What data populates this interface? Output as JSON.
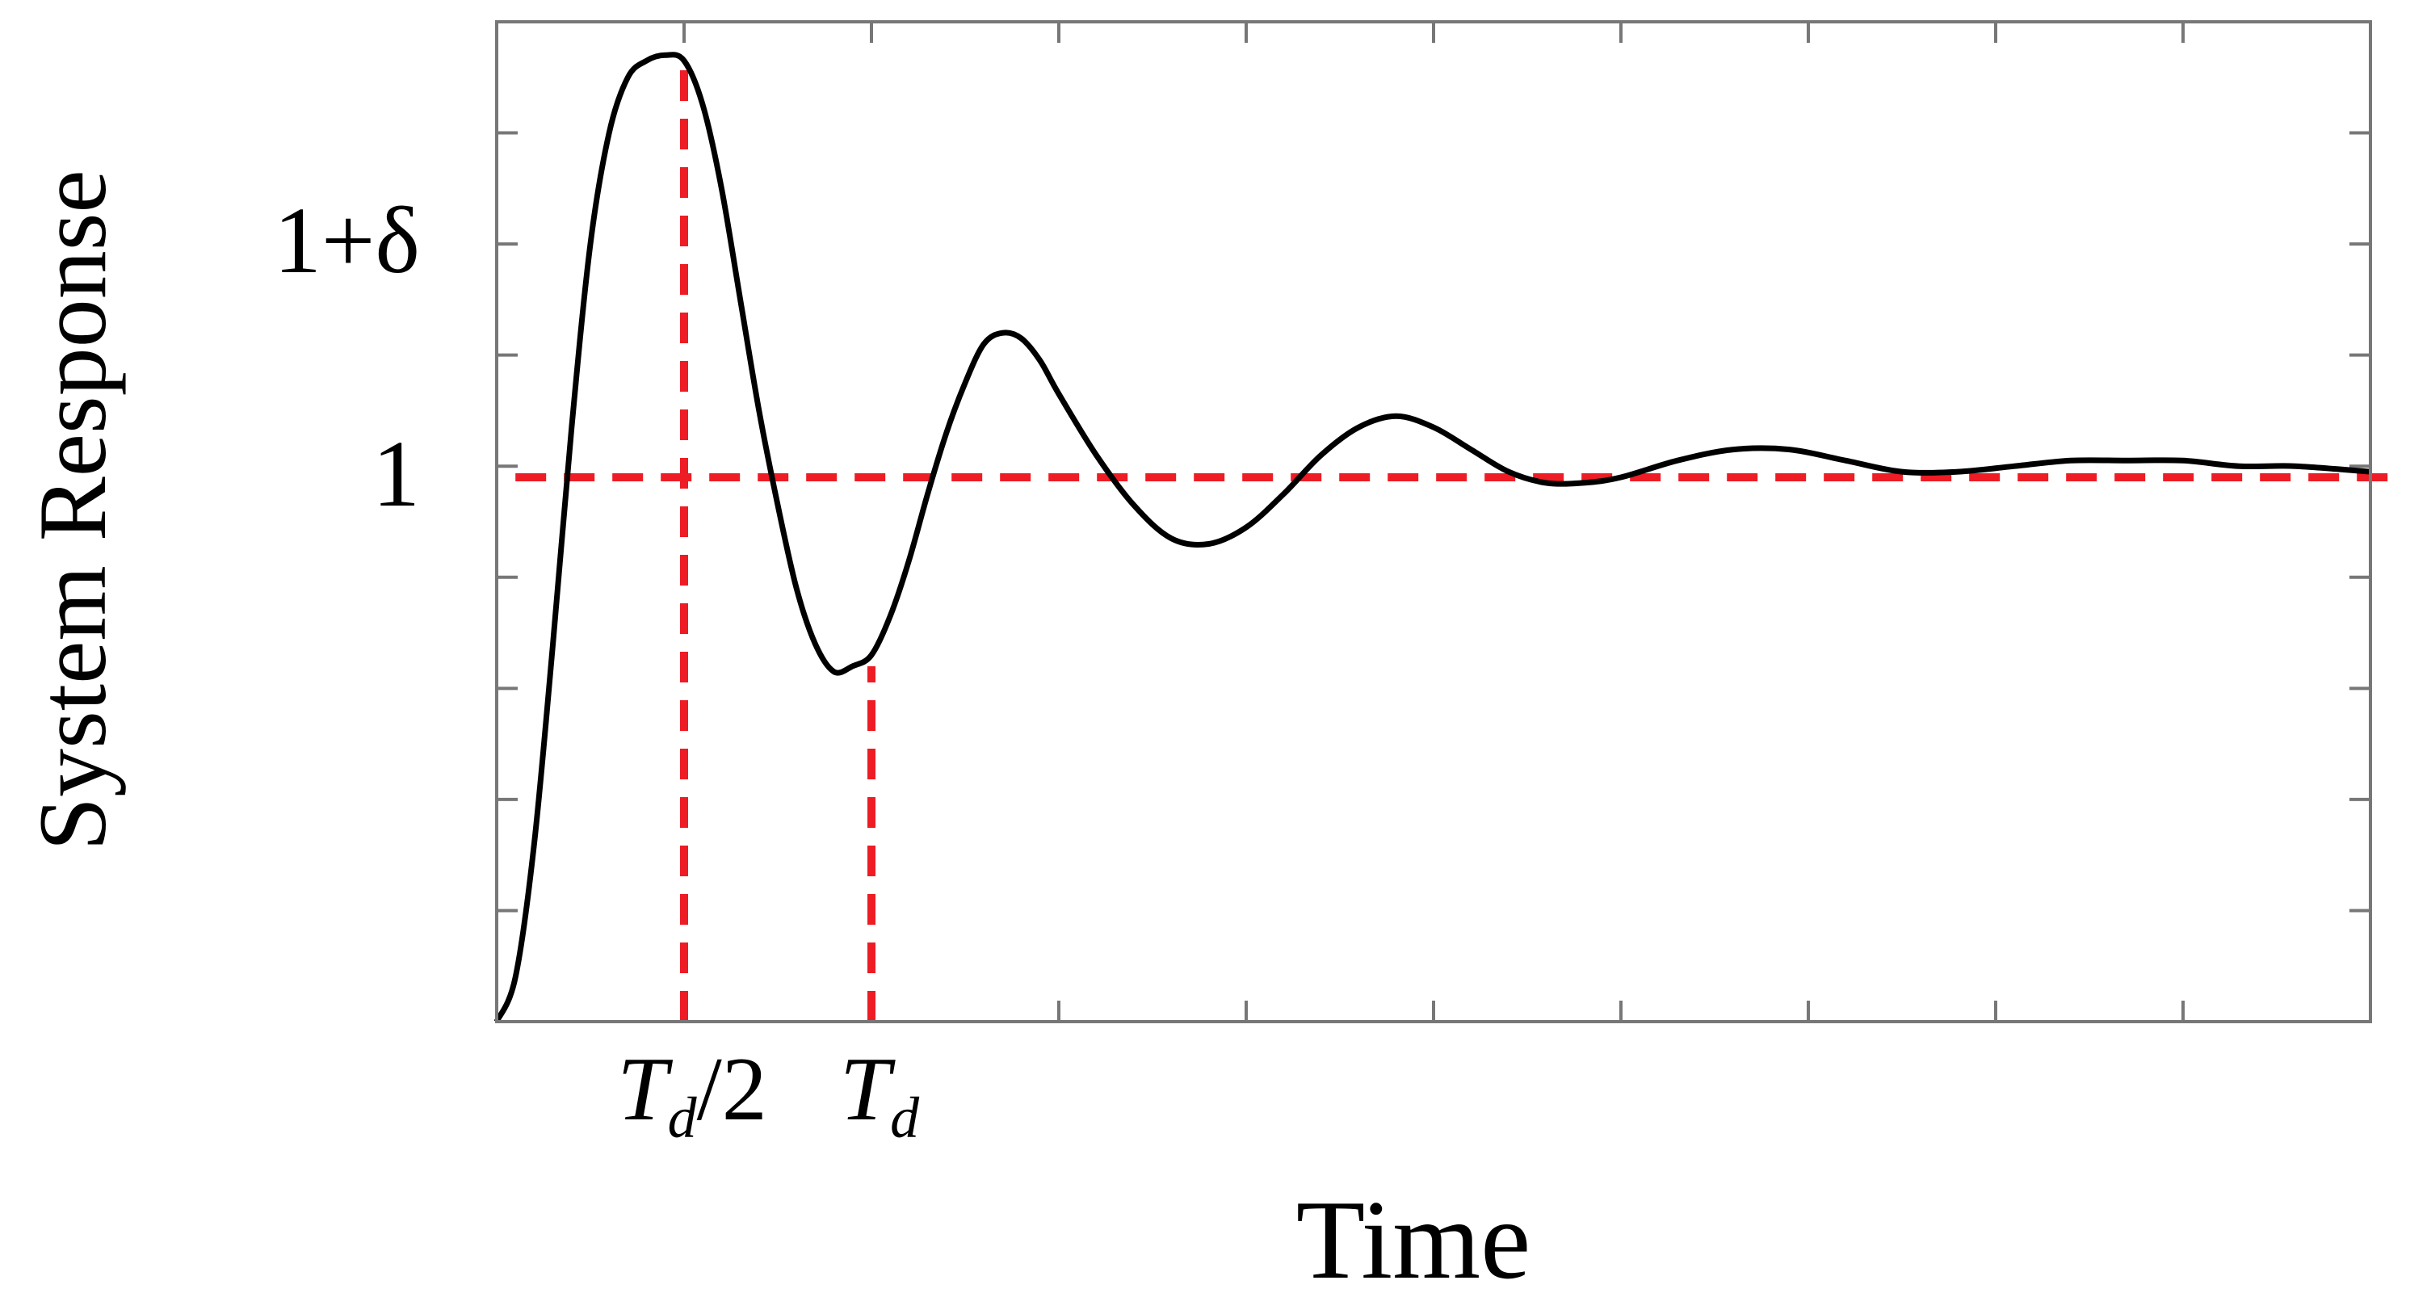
{
  "chart_data": {
    "type": "line",
    "title": "",
    "xlabel": "Time",
    "ylabel": "System Response",
    "xlim": [
      0,
      10
    ],
    "ylim": [
      0,
      1.8
    ],
    "grid": false,
    "x_tick_labels": [
      {
        "x": 1,
        "base": "T",
        "sub": "d",
        "suffix": "/2"
      },
      {
        "x": 2,
        "base": "T",
        "sub": "d",
        "suffix": ""
      }
    ],
    "y_tick_labels": [
      {
        "y": 1.4,
        "text": "1+δ"
      },
      {
        "y": 0.98,
        "text": "1"
      }
    ],
    "series": [
      {
        "color": "#000000",
        "style": "solid",
        "x": [
          0,
          0.1,
          0.2,
          0.3,
          0.4,
          0.5,
          0.6,
          0.7,
          0.8,
          0.9,
          1.0,
          1.1,
          1.2,
          1.3,
          1.4,
          1.5,
          1.6,
          1.7,
          1.8,
          1.9,
          2.0,
          2.1,
          2.2,
          2.3,
          2.4,
          2.5,
          2.6,
          2.7,
          2.8,
          2.9,
          3.0,
          3.2,
          3.4,
          3.6,
          3.8,
          4.0,
          4.2,
          4.4,
          4.6,
          4.8,
          5.0,
          5.2,
          5.4,
          5.6,
          5.8,
          6.0,
          6.3,
          6.6,
          6.9,
          7.2,
          7.5,
          7.8,
          8.1,
          8.4,
          8.7,
          9.0,
          9.3,
          9.6,
          10.0
        ],
        "y": [
          0.0,
          0.08,
          0.32,
          0.68,
          1.07,
          1.4,
          1.6,
          1.7,
          1.73,
          1.74,
          1.73,
          1.65,
          1.5,
          1.3,
          1.1,
          0.93,
          0.78,
          0.68,
          0.63,
          0.64,
          0.66,
          0.73,
          0.83,
          0.95,
          1.06,
          1.15,
          1.22,
          1.24,
          1.23,
          1.19,
          1.13,
          1.02,
          0.93,
          0.87,
          0.86,
          0.89,
          0.95,
          1.02,
          1.07,
          1.09,
          1.07,
          1.03,
          0.99,
          0.97,
          0.97,
          0.98,
          1.01,
          1.03,
          1.03,
          1.01,
          0.99,
          0.99,
          1.0,
          1.01,
          1.01,
          1.01,
          1.0,
          1.0,
          0.99
        ]
      }
    ],
    "reference_lines": [
      {
        "orientation": "horizontal",
        "y": 0.98,
        "x_from": 0.1,
        "x_to": 10.1,
        "color": "#ee1c24",
        "style": "dashed"
      },
      {
        "orientation": "vertical",
        "x": 1.0,
        "y_from": 0,
        "y_to": 1.74,
        "color": "#ee1c24",
        "style": "dashed"
      },
      {
        "orientation": "vertical",
        "x": 2.0,
        "y_from": 0,
        "y_to": 0.64,
        "color": "#ee1c24",
        "style": "dashed"
      }
    ]
  }
}
